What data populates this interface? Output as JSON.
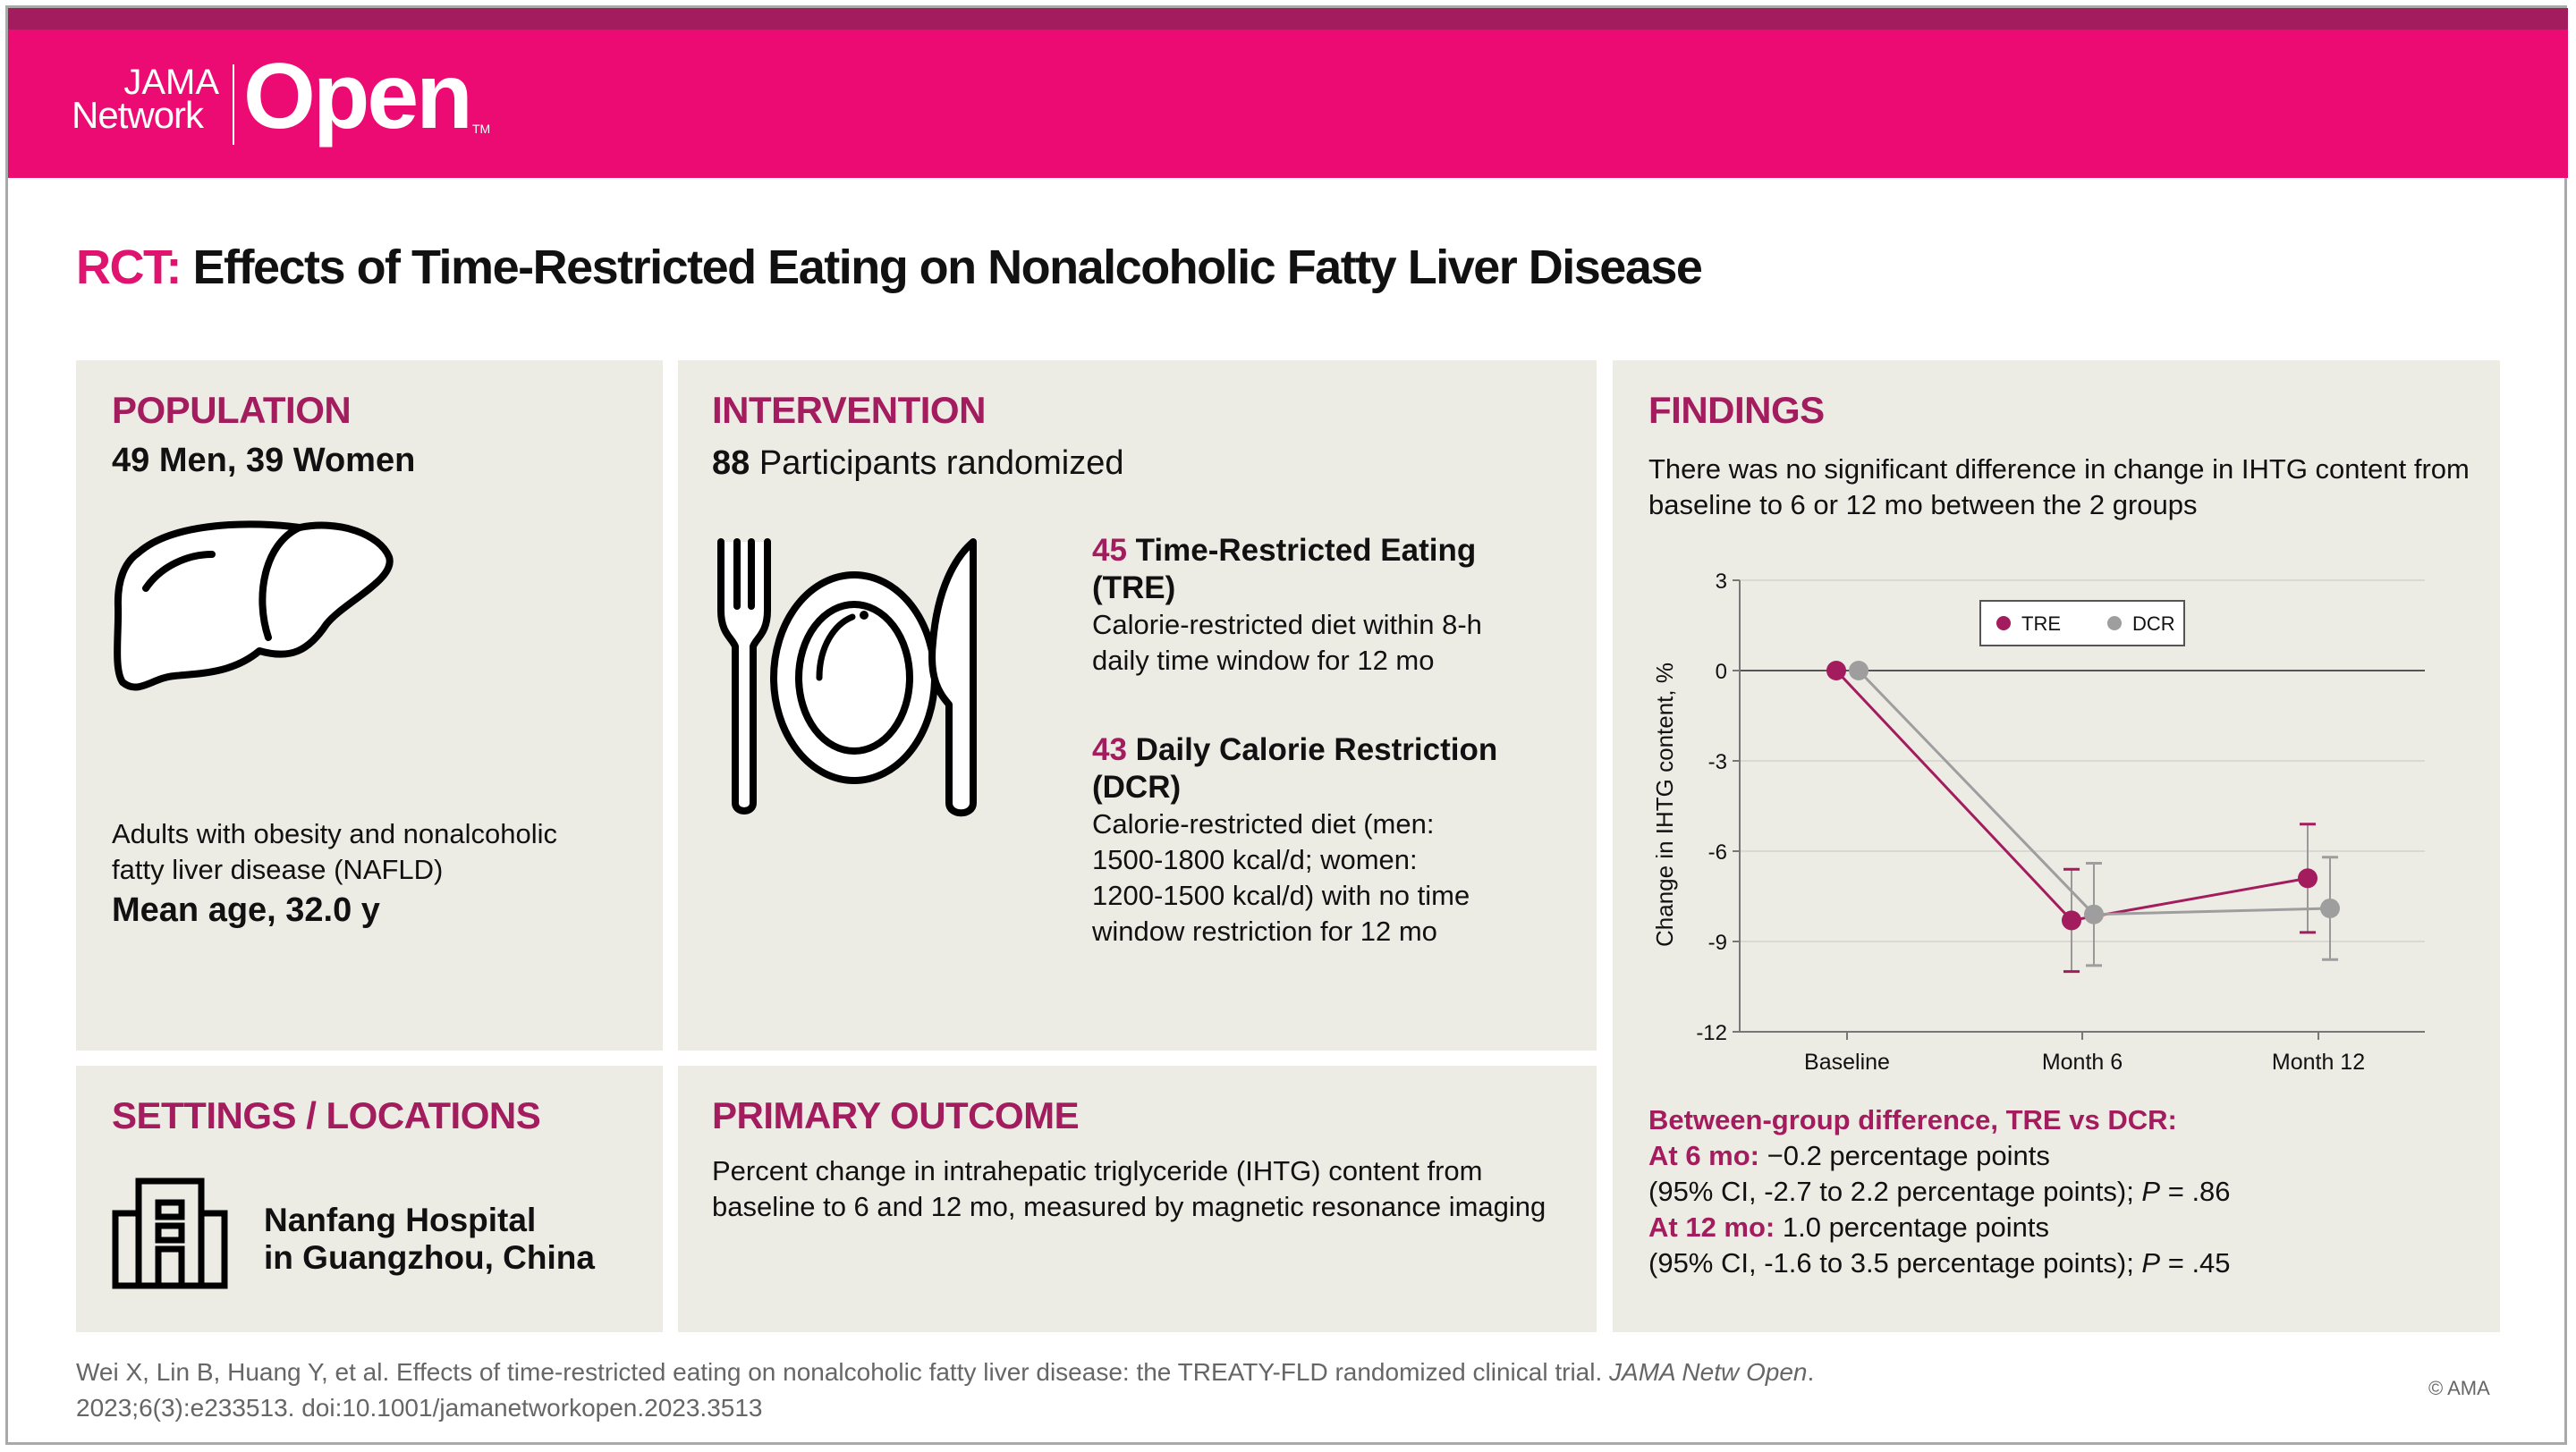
{
  "brand": {
    "logo_line1": "JAMA",
    "logo_line2": "Network",
    "logo_open": "Open",
    "logo_tm": "TM",
    "colors": {
      "header_pink": "#ec0b72",
      "header_strip": "#a21c5e",
      "accent": "#a21c5e",
      "panel_bg": "#ecebe4",
      "tre": "#a21c5e",
      "dcr": "#9e9e9e"
    }
  },
  "title": {
    "prefix": "RCT:",
    "text": "Effects of Time-Restricted Eating on Nonalcoholic Fatty Liver Disease"
  },
  "population": {
    "heading": "POPULATION",
    "counts": "49 Men, 39 Women",
    "icon": "liver-icon",
    "description_line1": "Adults with obesity and nonalcoholic",
    "description_line2": "fatty liver disease (NAFLD)",
    "mean_age": "Mean age, 32.0 y"
  },
  "intervention": {
    "heading": "INTERVENTION",
    "total_number": "88",
    "total_label": "Participants randomized",
    "icon": "plate-fork-knife-icon",
    "arms": [
      {
        "number": "45",
        "name_line1": "Time-Restricted Eating",
        "name_line2": "(TRE)",
        "desc_lines": [
          "Calorie-restricted diet within 8-h",
          "daily time window for 12 mo"
        ]
      },
      {
        "number": "43",
        "name_line1": "Daily Calorie Restriction",
        "name_line2": "(DCR)",
        "desc_lines": [
          "Calorie-restricted diet (men:",
          "1500-1800 kcal/d; women:",
          "1200-1500 kcal/d) with no time",
          "window restriction for 12 mo"
        ]
      }
    ]
  },
  "settings": {
    "heading": "SETTINGS / LOCATIONS",
    "icon": "hospital-building-icon",
    "location_line1": "Nanfang Hospital",
    "location_line2": "in Guangzhou, China"
  },
  "primary_outcome": {
    "heading": "PRIMARY OUTCOME",
    "line1": "Percent change in intrahepatic triglyceride (IHTG) content from",
    "line2": "baseline to 6 and 12 mo, measured by magnetic resonance imaging"
  },
  "findings": {
    "heading": "FINDINGS",
    "summary_line1": "There was no significant difference in change in IHTG content from",
    "summary_line2": "baseline to 6 or 12 mo between the 2 groups",
    "between_heading": "Between-group difference, TRE vs DCR:",
    "at6_label": "At 6 mo:",
    "at6_value": " −0.2 percentage points",
    "at6_ci": "(95% CI, -2.7 to 2.2 percentage points); ",
    "at6_p_label": "P",
    "at6_p": " = .86",
    "at12_label": "At 12 mo:",
    "at12_value": " 1.0 percentage points",
    "at12_ci": "(95% CI, -1.6 to 3.5 percentage points); ",
    "at12_p_label": "P",
    "at12_p": " = .45"
  },
  "chart_data": {
    "type": "line",
    "title": "",
    "xlabel": "",
    "ylabel": "Change in IHTG content, %",
    "categories": [
      "Baseline",
      "Month 6",
      "Month 12"
    ],
    "ylim": [
      -12,
      3
    ],
    "yticks": [
      3,
      0,
      -3,
      -6,
      -9,
      -12
    ],
    "ytick_labels": [
      "3",
      "0",
      "-3",
      "-6",
      "-9",
      "-12"
    ],
    "grid": true,
    "legend_position": "top-center",
    "series": [
      {
        "name": "TRE",
        "color": "#a21c5e",
        "values": [
          0,
          -8.3,
          -6.9
        ],
        "ci_low": [
          null,
          -10.0,
          -8.7
        ],
        "ci_high": [
          null,
          -6.6,
          -5.1
        ]
      },
      {
        "name": "DCR",
        "color": "#9e9e9e",
        "values": [
          0,
          -8.1,
          -7.9
        ],
        "ci_low": [
          null,
          -9.8,
          -9.6
        ],
        "ci_high": [
          null,
          -6.4,
          -6.2
        ]
      }
    ]
  },
  "citation": {
    "line1_prefix": "Wei X, Lin B, Huang Y, et al. Effects of time-restricted eating on nonalcoholic fatty liver disease: the TREATY-FLD randomized clinical trial. ",
    "line1_journal": "JAMA Netw Open",
    "line1_suffix": ".",
    "line2": "2023;6(3):e233513. doi:10.1001/jamanetworkopen.2023.3513",
    "copyright": "© AMA"
  }
}
